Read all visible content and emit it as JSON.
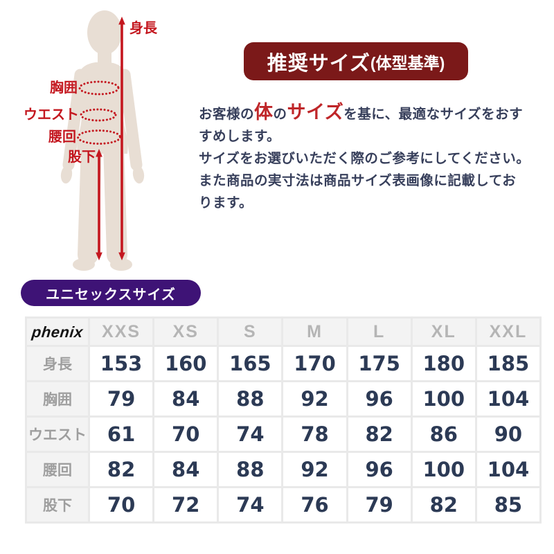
{
  "figure": {
    "labels": {
      "height": "身長",
      "chest": "胸囲",
      "waist": "ウエスト",
      "hip": "腰回",
      "inseam": "股下"
    },
    "accent_color": "#c4171f",
    "silhouette_color": "#e8ded4"
  },
  "title_badge": {
    "main": "推奨サイズ",
    "paren": "(体型基準)",
    "bg_color": "#7b1919",
    "text_color": "#ffffff"
  },
  "intro": {
    "line1_pre": "お客様の",
    "line1_em1": "体",
    "line1_mid": "の",
    "line1_em2": "サイズ",
    "line1_post": "を基に、最適なサイズをおす",
    "line2": "すめします。",
    "line3": "サイズをお選びいただく際のご参考にしてください。",
    "line4": "また商品の実寸法は商品サイズ表画像に記載してお",
    "line5": "ります。",
    "text_color": "#373f5b",
    "emphasis_color": "#bf2629"
  },
  "unisex_badge": {
    "label": "ユニセックスサイズ",
    "bg_color": "#3e1376",
    "text_color": "#ffffff"
  },
  "chart_data": {
    "type": "table",
    "title": "ユニセックスサイズ",
    "brand": "phenix",
    "columns": [
      "XXS",
      "XS",
      "S",
      "M",
      "L",
      "XL",
      "XXL"
    ],
    "rows": [
      {
        "label": "身長",
        "values": [
          153,
          160,
          165,
          170,
          175,
          180,
          185
        ]
      },
      {
        "label": "胸囲",
        "values": [
          79,
          84,
          88,
          92,
          96,
          100,
          104
        ]
      },
      {
        "label": "ウエスト",
        "values": [
          61,
          70,
          74,
          78,
          82,
          86,
          90
        ]
      },
      {
        "label": "腰回",
        "values": [
          82,
          84,
          88,
          92,
          96,
          100,
          104
        ]
      },
      {
        "label": "股下",
        "values": [
          70,
          72,
          74,
          76,
          79,
          82,
          85
        ]
      }
    ],
    "header_text_color": "#b5b5b5",
    "value_text_color": "#2c3a55"
  }
}
